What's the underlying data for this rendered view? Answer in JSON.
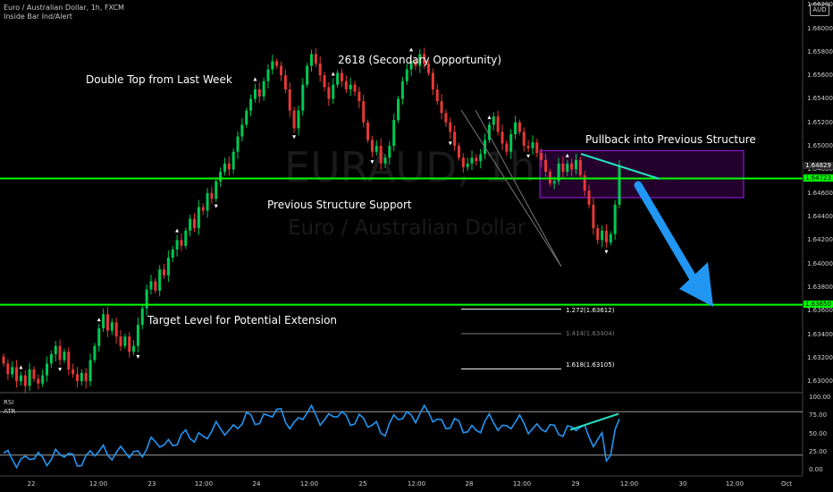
{
  "header": {
    "symbol_line": "Euro / Australian Dollar, 1h, FXCM",
    "indicator_line": "Inside Bar Ind/Alert",
    "currency_badge": "AUD"
  },
  "watermark": {
    "ticker": "EURAUD, 1h",
    "name": "Euro / Australian Dollar"
  },
  "annotations": {
    "double_top": "Double Top from Last Week",
    "secondary": "2618 (Secondary Opportunity)",
    "pullback": "Pullback into Previous Structure",
    "support": "Previous Structure Support",
    "target": "Target Level for Potential Extension"
  },
  "fib_levels": [
    {
      "label": "1.272(1.63612)",
      "value": 1.63612,
      "color": "#ffffff"
    },
    {
      "label": "1.414(1.63404)",
      "value": 1.63404,
      "color": "#7a7a7a"
    },
    {
      "label": "1.618(1.63105)",
      "value": 1.63105,
      "color": "#ffffff"
    }
  ],
  "oscillator": {
    "labels": [
      "RSI",
      "ATR"
    ],
    "y_ticks": [
      "100.00",
      "75.00",
      "50.00",
      "25.00",
      "0.00"
    ]
  },
  "price_badges": [
    {
      "label": "1.64829",
      "value": 1.64829,
      "color": "#ffffff",
      "bg": "#2a2a2a"
    },
    {
      "label": "1.64723",
      "value": 1.64723,
      "color": "#000000",
      "bg": "#00ff00"
    },
    {
      "label": "1.63650",
      "value": 1.6365,
      "color": "#000000",
      "bg": "#00ff00"
    }
  ],
  "colors": {
    "up": "#00c853",
    "down": "#e53935",
    "level": "#00ff00",
    "zone": "#a020f0",
    "rsi": "#2196f3",
    "divergence": "#26e0c0",
    "arrow": "#2196f3"
  },
  "chart_data": {
    "type": "candlestick",
    "symbol": "EURAUD",
    "timeframe": "1h",
    "x_ticks": [
      "22",
      "12:00",
      "23",
      "12:00",
      "24",
      "12:00",
      "25",
      "12:00",
      "28",
      "12:00",
      "29",
      "12:00",
      "30",
      "12:00",
      "Oct"
    ],
    "y_ticks": [
      "1.66200",
      "1.66000",
      "1.65800",
      "1.65600",
      "1.65400",
      "1.65200",
      "1.65000",
      "1.64800",
      "1.64600",
      "1.64400",
      "1.64200",
      "1.64000",
      "1.63800",
      "1.63600",
      "1.63400",
      "1.63200",
      "1.63000"
    ],
    "ylim": [
      1.6291,
      1.6624
    ],
    "horizontal_levels": [
      {
        "name": "Previous Structure Support",
        "value": 1.64723
      },
      {
        "name": "Target Level for Potential Extension",
        "value": 1.6365
      }
    ],
    "zone": {
      "name": "Pullback into Previous Structure",
      "top": 1.6496,
      "bottom": 1.6456
    },
    "close_path": [
      1.6315,
      1.6306,
      1.6312,
      1.63,
      1.6305,
      1.6296,
      1.631,
      1.6302,
      1.6298,
      1.6305,
      1.6315,
      1.6323,
      1.633,
      1.6318,
      1.6325,
      1.631,
      1.6306,
      1.63,
      1.6307,
      1.63,
      1.6318,
      1.633,
      1.6345,
      1.6357,
      1.6343,
      1.635,
      1.6338,
      1.633,
      1.6338,
      1.6325,
      1.633,
      1.6348,
      1.6362,
      1.6378,
      1.6385,
      1.6377,
      1.6395,
      1.639,
      1.6405,
      1.6412,
      1.642,
      1.6415,
      1.6428,
      1.6438,
      1.643,
      1.6448,
      1.6445,
      1.646,
      1.6455,
      1.647,
      1.6478,
      1.6485,
      1.648,
      1.6495,
      1.6508,
      1.6518,
      1.653,
      1.654,
      1.6548,
      1.6542,
      1.6555,
      1.6565,
      1.6572,
      1.6568,
      1.656,
      1.6548,
      1.653,
      1.6515,
      1.653,
      1.6552,
      1.6568,
      1.6578,
      1.657,
      1.656,
      1.655,
      1.654,
      1.6552,
      1.6562,
      1.6555,
      1.6548,
      1.6552,
      1.6546,
      1.6538,
      1.652,
      1.6505,
      1.6495,
      1.65,
      1.6485,
      1.649,
      1.65,
      1.6522,
      1.654,
      1.6555,
      1.6565,
      1.6572,
      1.6568,
      1.6578,
      1.657,
      1.6562,
      1.6548,
      1.6538,
      1.6528,
      1.652,
      1.6512,
      1.65,
      1.649,
      1.6482,
      1.6485,
      1.649,
      1.6487,
      1.6493,
      1.6505,
      1.6518,
      1.6525,
      1.6512,
      1.6502,
      1.6495,
      1.651,
      1.652,
      1.6512,
      1.65,
      1.6498,
      1.6503,
      1.6494,
      1.6488,
      1.6478,
      1.6468,
      1.647,
      1.6485,
      1.6478,
      1.6485,
      1.648,
      1.6488,
      1.6475,
      1.6462,
      1.645,
      1.643,
      1.642,
      1.6428,
      1.6418,
      1.6425,
      1.645,
      1.6483
    ]
  }
}
